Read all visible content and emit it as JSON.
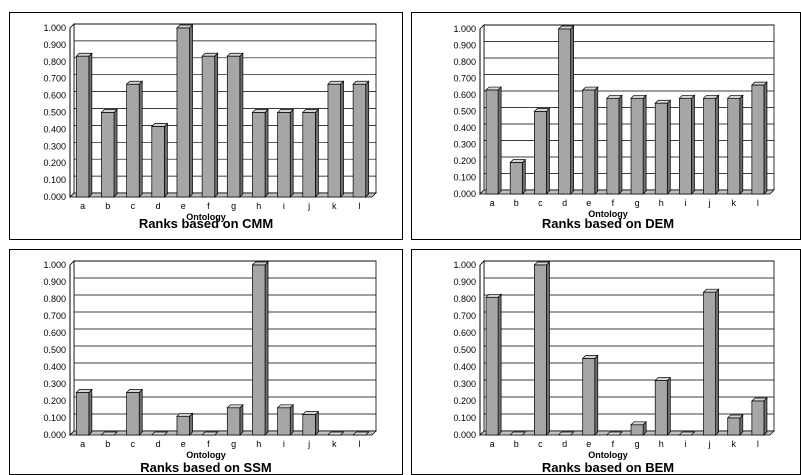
{
  "chart_data": [
    {
      "type": "bar",
      "title": "Ranks based on CMM",
      "xlabel": "Ontology",
      "ylabel": "",
      "ylim": [
        0,
        1
      ],
      "yticks": [
        "0.000",
        "0.100",
        "0.200",
        "0.300",
        "0.400",
        "0.500",
        "0.600",
        "0.700",
        "0.800",
        "0.900",
        "1.000"
      ],
      "categories": [
        "a",
        "b",
        "c",
        "d",
        "e",
        "f",
        "g",
        "h",
        "i",
        "j",
        "k",
        "l"
      ],
      "values": [
        0.833,
        0.5,
        0.667,
        0.417,
        1.0,
        0.833,
        0.833,
        0.5,
        0.5,
        0.5,
        0.667,
        0.667
      ],
      "grid": true
    },
    {
      "type": "bar",
      "title": "Ranks based on DEM",
      "xlabel": "Ontology",
      "ylabel": "",
      "ylim": [
        0,
        1
      ],
      "yticks": [
        "0.000",
        "0.100",
        "0.200",
        "0.300",
        "0.400",
        "0.500",
        "0.600",
        "0.700",
        "0.800",
        "0.900",
        "1.000"
      ],
      "categories": [
        "a",
        "b",
        "c",
        "d",
        "e",
        "f",
        "g",
        "h",
        "i",
        "j",
        "k",
        "l"
      ],
      "values": [
        0.63,
        0.19,
        0.5,
        1.0,
        0.63,
        0.58,
        0.58,
        0.55,
        0.58,
        0.58,
        0.58,
        0.66
      ],
      "grid": true
    },
    {
      "type": "bar",
      "title": "Ranks based on SSM",
      "xlabel": "Ontology",
      "ylabel": "",
      "ylim": [
        0,
        1
      ],
      "yticks": [
        "0.000",
        "0.100",
        "0.200",
        "0.300",
        "0.400",
        "0.500",
        "0.600",
        "0.700",
        "0.800",
        "0.900",
        "1.000"
      ],
      "categories": [
        "a",
        "b",
        "c",
        "d",
        "e",
        "f",
        "g",
        "h",
        "i",
        "j",
        "k",
        "l"
      ],
      "values": [
        0.25,
        0.0,
        0.25,
        0.0,
        0.11,
        0.0,
        0.16,
        1.0,
        0.16,
        0.12,
        0.0,
        0.0
      ],
      "grid": true
    },
    {
      "type": "bar",
      "title": "Ranks based on BEM",
      "xlabel": "Ontology",
      "ylabel": "",
      "ylim": [
        0,
        1
      ],
      "yticks": [
        "0.000",
        "0.100",
        "0.200",
        "0.300",
        "0.400",
        "0.500",
        "0.600",
        "0.700",
        "0.800",
        "0.900",
        "1.000"
      ],
      "categories": [
        "a",
        "b",
        "c",
        "d",
        "e",
        "f",
        "g",
        "h",
        "i",
        "j",
        "k",
        "l"
      ],
      "values": [
        0.81,
        0.0,
        1.0,
        0.0,
        0.45,
        0.0,
        0.06,
        0.32,
        0.0,
        0.84,
        0.1,
        0.2
      ],
      "grid": true
    }
  ],
  "colors": {
    "bar_front": "#a6a6a6",
    "bar_side": "#6e6e6e",
    "bar_top": "#d4d4d4",
    "grid": "#000000",
    "floor": "#c0c0c0"
  }
}
